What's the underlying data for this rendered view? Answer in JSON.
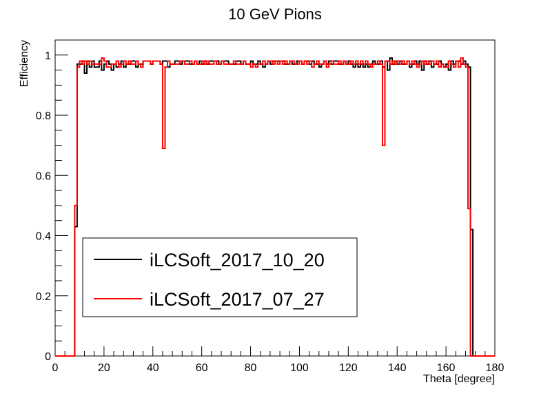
{
  "chart_data": {
    "type": "line",
    "title": "10 GeV Pions",
    "xlabel": "Theta [degree]",
    "ylabel": "Efficiency",
    "xlim": [
      0,
      180
    ],
    "ylim": [
      0,
      1.05
    ],
    "x_ticks": [
      0,
      20,
      40,
      60,
      80,
      100,
      120,
      140,
      160,
      180
    ],
    "y_ticks": [
      0,
      0.2,
      0.4,
      0.6,
      0.8,
      1
    ],
    "x_tick_labels": [
      "0",
      "20",
      "40",
      "60",
      "80",
      "100",
      "120",
      "140",
      "160",
      "180"
    ],
    "y_tick_labels": [
      "0",
      "0.2",
      "0.4",
      "0.6",
      "0.8",
      "1"
    ],
    "bin_width": 1,
    "legend_position": "lower-left",
    "grid": false,
    "series": [
      {
        "name": "iLCSoft_2017_10_20",
        "color": "#000000",
        "bin_start": 8,
        "values": [
          0.43,
          0.97,
          0.97,
          0.98,
          0.94,
          0.98,
          0.96,
          0.98,
          0.96,
          0.96,
          0.98,
          0.95,
          0.97,
          0.98,
          0.97,
          0.95,
          0.97,
          0.96,
          0.97,
          0.98,
          0.96,
          0.97,
          0.97,
          0.98,
          0.98,
          0.96,
          0.97,
          0.97,
          0.98,
          0.98,
          0.98,
          0.97,
          0.98,
          0.98,
          0.98,
          0.97,
          0.98,
          0.98,
          0.96,
          0.97,
          0.97,
          0.98,
          0.98,
          0.97,
          0.98,
          0.98,
          0.98,
          0.97,
          0.97,
          0.98,
          0.97,
          0.98,
          0.97,
          0.98,
          0.97,
          0.98,
          0.98,
          0.98,
          0.98,
          0.97,
          0.98,
          0.98,
          0.98,
          0.97,
          0.97,
          0.97,
          0.98,
          0.98,
          0.97,
          0.98,
          0.97,
          0.97,
          0.98,
          0.97,
          0.97,
          0.98,
          0.97,
          0.96,
          0.97,
          0.98,
          0.97,
          0.98,
          0.98,
          0.98,
          0.98,
          0.98,
          0.97,
          0.97,
          0.98,
          0.97,
          0.97,
          0.98,
          0.98,
          0.97,
          0.98,
          0.98,
          0.97,
          0.98,
          0.97,
          0.97,
          0.96,
          0.97,
          0.98,
          0.97,
          0.98,
          0.97,
          0.98,
          0.98,
          0.97,
          0.97,
          0.98,
          0.97,
          0.98,
          0.97,
          0.96,
          0.97,
          0.96,
          0.97,
          0.96,
          0.97,
          0.96,
          0.97,
          0.98,
          0.97,
          0.97,
          0.98,
          0.96,
          0.98,
          0.95,
          0.99,
          0.97,
          0.98,
          0.97,
          0.98,
          0.97,
          0.97,
          0.98,
          0.96,
          0.97,
          0.98,
          0.97,
          0.98,
          0.95,
          0.98,
          0.97,
          0.98,
          0.96,
          0.97,
          0.97,
          0.98,
          0.97,
          0.96,
          0.97,
          0.95,
          0.98,
          0.97,
          0.98,
          0.98,
          0.97,
          0.98,
          0.97,
          0.96,
          0.42
        ]
      },
      {
        "name": "iLCSoft_2017_07_27",
        "color": "#ff0000",
        "bin_start": 8,
        "values": [
          0.5,
          0.96,
          0.98,
          0.97,
          0.98,
          0.97,
          0.98,
          0.97,
          0.97,
          0.97,
          0.97,
          0.99,
          0.98,
          0.96,
          0.96,
          0.97,
          0.97,
          0.98,
          0.96,
          0.97,
          0.98,
          0.97,
          0.98,
          0.97,
          0.97,
          0.98,
          0.97,
          0.96,
          0.98,
          0.98,
          0.98,
          0.97,
          0.98,
          0.98,
          0.98,
          0.97,
          0.69,
          0.96,
          0.98,
          0.97,
          0.97,
          0.97,
          0.97,
          0.98,
          0.98,
          0.97,
          0.97,
          0.98,
          0.97,
          0.98,
          0.97,
          0.97,
          0.98,
          0.97,
          0.98,
          0.97,
          0.97,
          0.98,
          0.97,
          0.97,
          0.98,
          0.97,
          0.97,
          0.97,
          0.97,
          0.98,
          0.97,
          0.97,
          0.97,
          0.98,
          0.97,
          0.97,
          0.96,
          0.97,
          0.96,
          0.97,
          0.97,
          0.98,
          0.97,
          0.98,
          0.98,
          0.97,
          0.98,
          0.97,
          0.98,
          0.97,
          0.98,
          0.97,
          0.98,
          0.98,
          0.97,
          0.97,
          0.98,
          0.97,
          0.98,
          0.97,
          0.98,
          0.96,
          0.97,
          0.98,
          0.97,
          0.97,
          0.98,
          0.96,
          0.97,
          0.98,
          0.97,
          0.97,
          0.98,
          0.97,
          0.98,
          0.97,
          0.97,
          0.98,
          0.97,
          0.98,
          0.97,
          0.98,
          0.97,
          0.98,
          0.97,
          0.96,
          0.97,
          0.97,
          0.98,
          0.97,
          0.7,
          0.98,
          0.98,
          0.97,
          0.98,
          0.97,
          0.98,
          0.97,
          0.98,
          0.97,
          0.98,
          0.97,
          0.98,
          0.97,
          0.96,
          0.97,
          0.98,
          0.97,
          0.98,
          0.97,
          0.98,
          0.97,
          0.98,
          0.96,
          0.97,
          0.96,
          0.96,
          0.98,
          0.97,
          0.96,
          0.98,
          0.96,
          0.99,
          0.97,
          0.96,
          0.49
        ]
      }
    ]
  }
}
